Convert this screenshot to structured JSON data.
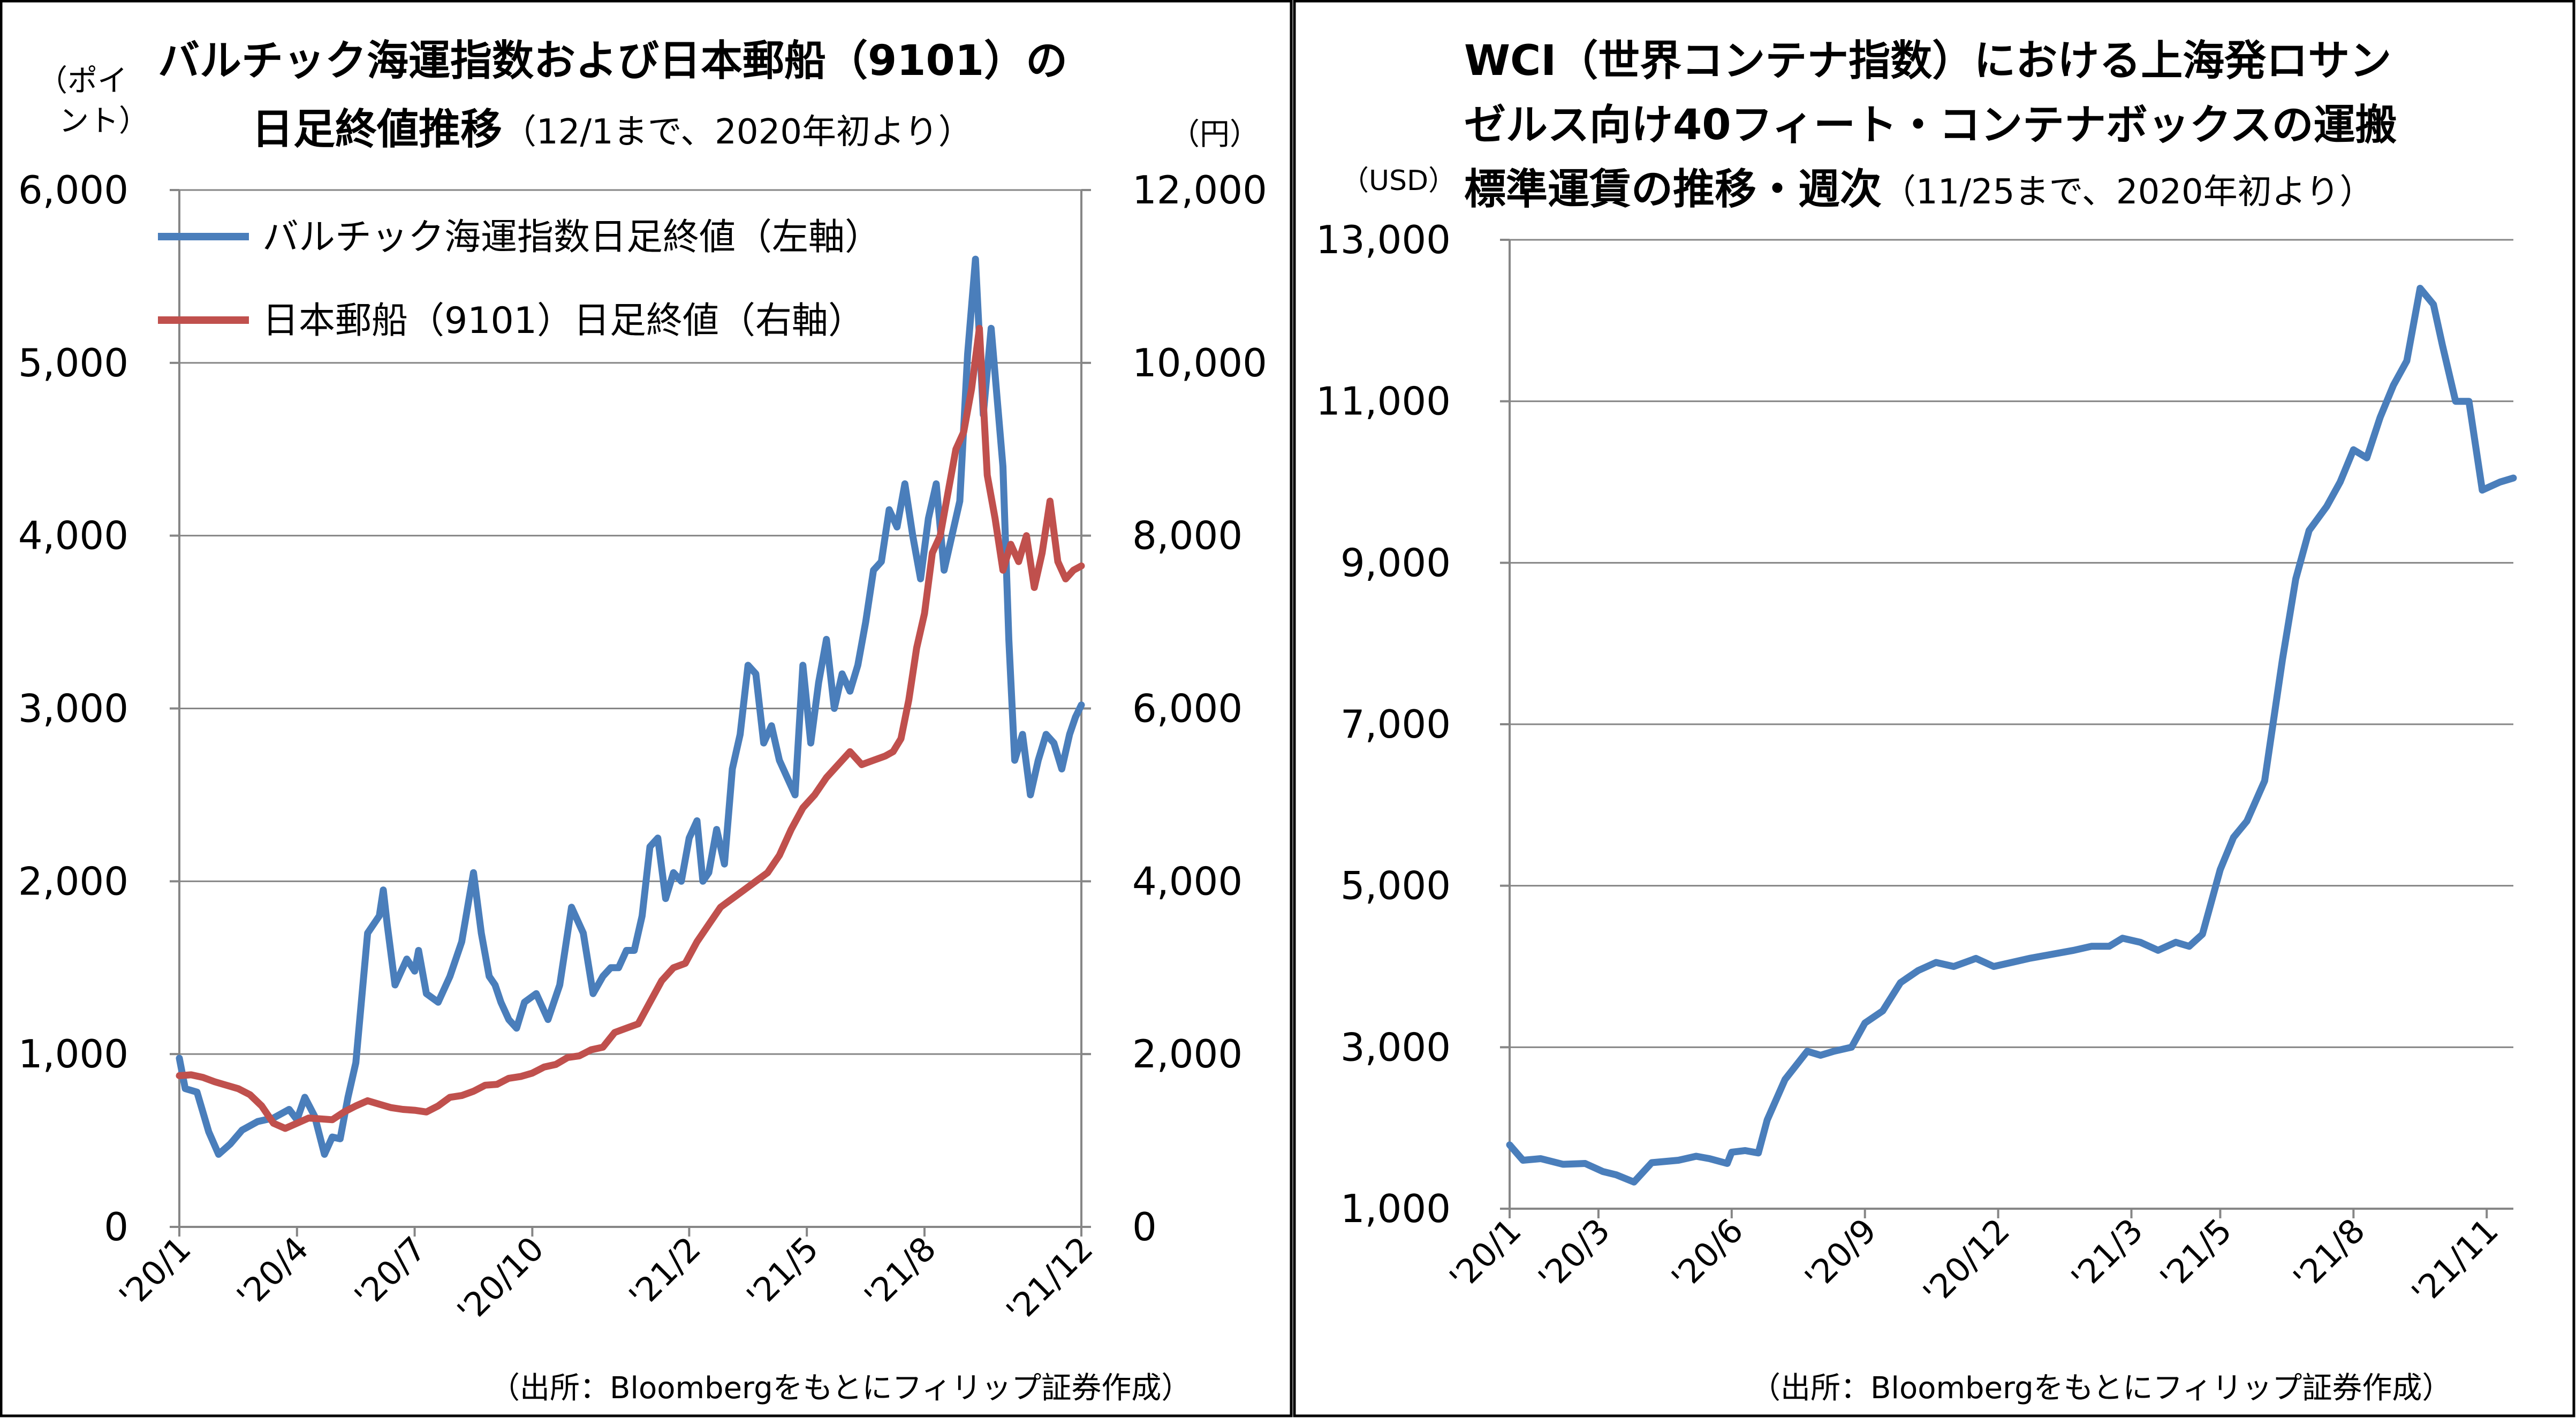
{
  "chart_data": [
    {
      "type": "line",
      "title": "バルチック海運指数および日本郵船（9101）の",
      "subtitle_main": "日足終値推移",
      "subtitle_note": "（12/1まで、2020年初より）",
      "ylabel_left": "（ポイ\nント）",
      "ylabel_right": "（円）",
      "grid": true,
      "legend_position": "top-left",
      "source": "（出所：Bloombergをもとにフィリップ証券作成）",
      "ylim_left": [
        0,
        6000
      ],
      "ylim_right": [
        0,
        12000
      ],
      "yticks_left": [
        "0",
        "1,000",
        "2,000",
        "3,000",
        "4,000",
        "5,000",
        "6,000"
      ],
      "yticks_right": [
        "0",
        "2,000",
        "4,000",
        "6,000",
        "8,000",
        "10,000",
        "12,000"
      ],
      "x_ticks": [
        "'20/1",
        "'20/4",
        "'20/7",
        "'20/10",
        "'21/2",
        "'21/5",
        "'21/8",
        "'21/12"
      ],
      "x_tick_pos": [
        0,
        3,
        6,
        9,
        13,
        16,
        19,
        23
      ],
      "xlim": [
        0,
        23
      ],
      "series": [
        {
          "name": "バルチック海運指数日足終値（左軸）",
          "axis": "left",
          "color": "#4a7ebb",
          "x": [
            0,
            0.15,
            0.45,
            0.75,
            1.0,
            1.3,
            1.6,
            2.0,
            2.4,
            2.8,
            3.0,
            3.2,
            3.45,
            3.7,
            3.9,
            4.1,
            4.3,
            4.5,
            4.8,
            5.1,
            5.2,
            5.3,
            5.5,
            5.8,
            6.0,
            6.1,
            6.3,
            6.6,
            6.9,
            7.2,
            7.5,
            7.7,
            7.9,
            8.05,
            8.2,
            8.4,
            8.6,
            8.8,
            9.1,
            9.4,
            9.7,
            10.0,
            10.3,
            10.55,
            10.8,
            11.0,
            11.2,
            11.4,
            11.6,
            11.8,
            12.0,
            12.2,
            12.4,
            12.6,
            12.8,
            13.0,
            13.2,
            13.35,
            13.5,
            13.7,
            13.9,
            14.1,
            14.3,
            14.5,
            14.7,
            14.9,
            15.1,
            15.3,
            15.5,
            15.7,
            15.9,
            16.1,
            16.3,
            16.5,
            16.7,
            16.9,
            17.1,
            17.3,
            17.5,
            17.7,
            17.9,
            18.1,
            18.3,
            18.5,
            18.7,
            18.9,
            19.1,
            19.3,
            19.5,
            19.7,
            19.9,
            20.1,
            20.3,
            20.5,
            20.7,
            20.85,
            21.0,
            21.15,
            21.3,
            21.5,
            21.7,
            21.9,
            22.1,
            22.3,
            22.5,
            22.7,
            22.85,
            23.0
          ],
          "values": [
            976,
            800,
            780,
            550,
            420,
            480,
            560,
            610,
            630,
            680,
            620,
            750,
            640,
            420,
            520,
            510,
            750,
            950,
            1700,
            1800,
            1950,
            1750,
            1400,
            1550,
            1480,
            1600,
            1350,
            1300,
            1450,
            1650,
            2050,
            1700,
            1450,
            1400,
            1300,
            1200,
            1150,
            1300,
            1350,
            1200,
            1400,
            1850,
            1700,
            1350,
            1450,
            1500,
            1500,
            1600,
            1600,
            1800,
            2200,
            2250,
            1900,
            2050,
            2000,
            2250,
            2350,
            2000,
            2050,
            2300,
            2100,
            2650,
            2850,
            3250,
            3200,
            2800,
            2900,
            2700,
            2600,
            2500,
            3250,
            2800,
            3150,
            3400,
            3000,
            3200,
            3100,
            3250,
            3500,
            3800,
            3850,
            4150,
            4050,
            4300,
            4000,
            3750,
            4100,
            4300,
            3800,
            4000,
            4200,
            5050,
            5600,
            4700,
            5200,
            4800,
            4400,
            3400,
            2700,
            2850,
            2500,
            2700,
            2850,
            2800,
            2650,
            2850,
            2950,
            3020
          ]
        },
        {
          "name": "日本郵船（9101）日足終値（右軸）",
          "axis": "right",
          "color": "#c0504d",
          "x": [
            0,
            0.3,
            0.6,
            0.9,
            1.2,
            1.5,
            1.8,
            2.1,
            2.4,
            2.7,
            3.0,
            3.3,
            3.6,
            3.9,
            4.2,
            4.5,
            4.8,
            5.1,
            5.4,
            5.7,
            6.0,
            6.3,
            6.6,
            6.9,
            7.2,
            7.5,
            7.8,
            8.1,
            8.4,
            8.7,
            9.0,
            9.3,
            9.6,
            9.9,
            10.2,
            10.5,
            10.8,
            11.1,
            11.4,
            11.7,
            12.0,
            12.3,
            12.6,
            12.9,
            13.2,
            13.5,
            13.8,
            14.1,
            14.4,
            14.7,
            15.0,
            15.3,
            15.6,
            15.9,
            16.2,
            16.5,
            16.8,
            17.1,
            17.4,
            17.7,
            18.0,
            18.2,
            18.4,
            18.6,
            18.8,
            19.0,
            19.2,
            19.4,
            19.6,
            19.8,
            20.0,
            20.2,
            20.4,
            20.6,
            20.8,
            21.0,
            21.2,
            21.4,
            21.6,
            21.8,
            22.0,
            22.2,
            22.4,
            22.6,
            22.8,
            23.0
          ],
          "values": [
            1750,
            1760,
            1730,
            1680,
            1640,
            1600,
            1530,
            1400,
            1200,
            1140,
            1200,
            1260,
            1250,
            1240,
            1330,
            1400,
            1460,
            1420,
            1380,
            1360,
            1350,
            1330,
            1400,
            1500,
            1520,
            1570,
            1640,
            1650,
            1720,
            1740,
            1780,
            1850,
            1880,
            1960,
            1980,
            2050,
            2080,
            2250,
            2300,
            2350,
            2600,
            2850,
            3000,
            3050,
            3300,
            3500,
            3700,
            3800,
            3900,
            4000,
            4100,
            4300,
            4600,
            4850,
            5000,
            5200,
            5350,
            5500,
            5350,
            5400,
            5450,
            5500,
            5650,
            6100,
            6700,
            7100,
            7800,
            8000,
            8500,
            9000,
            9200,
            9700,
            10400,
            8700,
            8200,
            7600,
            7900,
            7700,
            8000,
            7400,
            7800,
            8400,
            7700,
            7500,
            7600,
            7650
          ]
        }
      ]
    },
    {
      "type": "line",
      "title": "WCI（世界コンテナ指数）における上海発ロサン",
      "title_line2": "ゼルス向け40フィート・コンテナボックスの運搬",
      "subtitle_main": "標準運賃の推移・週次",
      "subtitle_note": "（11/25まで、2020年初より）",
      "ylabel": "（USD）",
      "grid": true,
      "source": "（出所：Bloombergをもとにフィリップ証券作成）",
      "ylim": [
        1000,
        13000
      ],
      "yticks": [
        "1,000",
        "3,000",
        "5,000",
        "7,000",
        "9,000",
        "11,000",
        "13,000"
      ],
      "x_ticks": [
        "'20/1",
        "'20/3",
        "'20/6",
        "'20/9",
        "'20/12",
        "'21/3",
        "'21/5",
        "'21/8",
        "'21/11"
      ],
      "x_tick_pos": [
        0,
        2,
        5,
        8,
        11,
        14,
        16,
        19,
        22
      ],
      "xlim": [
        0,
        22.6
      ],
      "series": [
        {
          "name": "",
          "color": "#4a7ebb",
          "x": [
            0,
            0.3,
            0.7,
            1.2,
            1.7,
            2.1,
            2.4,
            2.8,
            3.2,
            3.8,
            4.2,
            4.5,
            4.9,
            5.0,
            5.3,
            5.6,
            5.8,
            6.2,
            6.7,
            7.0,
            7.3,
            7.7,
            8.0,
            8.4,
            8.8,
            9.2,
            9.6,
            10.0,
            10.5,
            10.9,
            11.3,
            11.7,
            12.2,
            12.7,
            13.1,
            13.5,
            13.8,
            14.2,
            14.6,
            15.0,
            15.3,
            15.6,
            16.0,
            16.3,
            16.6,
            17.0,
            17.4,
            17.7,
            18.0,
            18.4,
            18.7,
            19.0,
            19.3,
            19.6,
            19.9,
            20.2,
            20.5,
            20.8,
            21.0,
            21.3,
            21.6,
            21.9,
            22.3,
            22.6
          ],
          "values": [
            1790,
            1600,
            1620,
            1550,
            1560,
            1460,
            1420,
            1330,
            1570,
            1600,
            1650,
            1620,
            1560,
            1700,
            1720,
            1690,
            2100,
            2600,
            2950,
            2900,
            2950,
            3000,
            3300,
            3450,
            3800,
            3950,
            4050,
            4000,
            4100,
            4000,
            4050,
            4100,
            4150,
            4200,
            4250,
            4250,
            4350,
            4300,
            4200,
            4300,
            4250,
            4400,
            5200,
            5600,
            5800,
            6300,
            7800,
            8800,
            9400,
            9700,
            10000,
            10400,
            10300,
            10800,
            11200,
            11500,
            12400,
            12200,
            11700,
            11000,
            11000,
            9900,
            10000,
            10050
          ]
        }
      ]
    }
  ]
}
